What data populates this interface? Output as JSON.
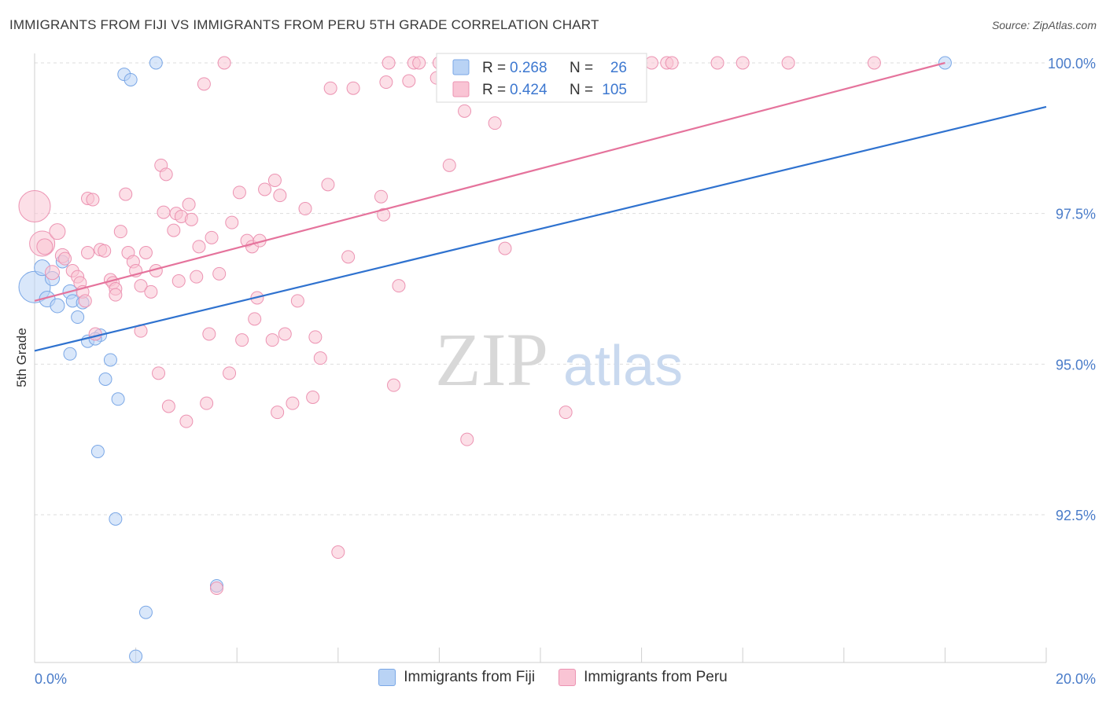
{
  "header": {
    "title": "IMMIGRANTS FROM FIJI VS IMMIGRANTS FROM PERU 5TH GRADE CORRELATION CHART",
    "source": "Source: ZipAtlas.com"
  },
  "watermark": {
    "zip": "ZIP",
    "atlas": "atlas"
  },
  "colors": {
    "fiji_fill": "#b9d3f5",
    "fiji_stroke": "#7aa7e6",
    "fiji_line": "#2f72cf",
    "peru_fill": "#f9c4d4",
    "peru_stroke": "#ec93b2",
    "peru_line": "#e5739c",
    "tick_label": "#4a7cc9",
    "grid": "#dddddd"
  },
  "legend_box": {
    "rows": [
      {
        "r_label": "R =",
        "r_value": "0.268",
        "n_label": "N =",
        "n_value": "26",
        "series": "fiji"
      },
      {
        "r_label": "R =",
        "r_value": "0.424",
        "n_label": "N =",
        "n_value": "105",
        "series": "peru"
      }
    ]
  },
  "chart_data": {
    "type": "scatter",
    "title": "IMMIGRANTS FROM FIJI VS IMMIGRANTS FROM PERU 5TH GRADE CORRELATION CHART",
    "xlabel": "",
    "ylabel": "5th Grade",
    "xlim": [
      0,
      20
    ],
    "ylim": [
      90.0,
      100.4
    ],
    "x_tick_labels": [
      {
        "value": 0,
        "label": "0.0%"
      },
      {
        "value": 20,
        "label": "20.0%"
      }
    ],
    "y_ticks": [
      {
        "value": 100,
        "label": "100.0%"
      },
      {
        "value": 97.5,
        "label": "97.5%"
      },
      {
        "value": 95,
        "label": "95.0%"
      },
      {
        "value": 92.5,
        "label": "92.5%"
      }
    ],
    "x_minor_ticks": [
      2,
      4,
      6,
      8,
      10,
      12,
      14,
      16,
      18,
      20
    ],
    "grid": true,
    "legend": "top-center and bottom",
    "series": [
      {
        "name": "Immigrants from Fiji",
        "key": "fiji",
        "trend": {
          "x": [
            0,
            20
          ],
          "y": [
            95.22,
            99.27
          ]
        },
        "points": [
          [
            0.0,
            96.28,
            20
          ],
          [
            0.15,
            96.6,
            10
          ],
          [
            0.25,
            96.08,
            10
          ],
          [
            0.35,
            96.42,
            9
          ],
          [
            0.45,
            95.97,
            9
          ],
          [
            0.55,
            96.7,
            8
          ],
          [
            0.7,
            96.2,
            9
          ],
          [
            0.75,
            96.05,
            8
          ],
          [
            0.85,
            95.78,
            8
          ],
          [
            0.95,
            96.02,
            8
          ],
          [
            0.7,
            95.17,
            8
          ],
          [
            1.05,
            95.38,
            8
          ],
          [
            1.3,
            95.48,
            8
          ],
          [
            1.2,
            95.42,
            8
          ],
          [
            1.5,
            95.07,
            8
          ],
          [
            1.4,
            94.75,
            8
          ],
          [
            1.65,
            94.42,
            8
          ],
          [
            1.25,
            93.55,
            8
          ],
          [
            1.6,
            92.43,
            8
          ],
          [
            1.77,
            99.81,
            8
          ],
          [
            1.9,
            99.72,
            8
          ],
          [
            2.4,
            100.0,
            8
          ],
          [
            3.6,
            91.32,
            8
          ],
          [
            2.2,
            90.88,
            8
          ],
          [
            2.0,
            90.15,
            8
          ],
          [
            18.0,
            100.0,
            8
          ]
        ]
      },
      {
        "name": "Immigrants from Peru",
        "key": "peru",
        "trend": {
          "x": [
            0,
            18
          ],
          "y": [
            96.05,
            100.0
          ]
        },
        "points": [
          [
            0.0,
            97.62,
            20
          ],
          [
            0.15,
            97.0,
            16
          ],
          [
            0.2,
            96.95,
            10
          ],
          [
            0.45,
            97.2,
            10
          ],
          [
            0.35,
            96.52,
            9
          ],
          [
            0.55,
            96.8,
            9
          ],
          [
            0.6,
            96.75,
            8
          ],
          [
            0.75,
            96.55,
            8
          ],
          [
            0.85,
            96.45,
            8
          ],
          [
            0.9,
            96.35,
            8
          ],
          [
            0.95,
            96.2,
            8
          ],
          [
            1.0,
            96.05,
            8
          ],
          [
            1.05,
            97.75,
            8
          ],
          [
            1.15,
            97.73,
            8
          ],
          [
            1.05,
            96.85,
            8
          ],
          [
            1.3,
            96.9,
            8
          ],
          [
            1.38,
            96.88,
            8
          ],
          [
            1.5,
            96.4,
            8
          ],
          [
            1.55,
            96.35,
            8
          ],
          [
            1.6,
            96.25,
            8
          ],
          [
            1.6,
            96.15,
            8
          ],
          [
            1.7,
            97.2,
            8
          ],
          [
            1.8,
            97.82,
            8
          ],
          [
            1.85,
            96.85,
            8
          ],
          [
            1.95,
            96.7,
            8
          ],
          [
            2.0,
            96.55,
            8
          ],
          [
            2.1,
            96.3,
            8
          ],
          [
            2.1,
            95.55,
            8
          ],
          [
            2.2,
            96.85,
            8
          ],
          [
            2.3,
            96.2,
            8
          ],
          [
            2.4,
            96.55,
            8
          ],
          [
            2.45,
            94.85,
            8
          ],
          [
            2.5,
            98.3,
            8
          ],
          [
            2.55,
            97.52,
            8
          ],
          [
            2.6,
            98.15,
            8
          ],
          [
            2.65,
            94.3,
            8
          ],
          [
            2.75,
            97.22,
            8
          ],
          [
            2.8,
            97.5,
            8
          ],
          [
            2.85,
            96.38,
            8
          ],
          [
            2.9,
            97.45,
            8
          ],
          [
            3.0,
            94.05,
            8
          ],
          [
            3.05,
            97.65,
            8
          ],
          [
            3.1,
            97.4,
            8
          ],
          [
            3.2,
            96.45,
            8
          ],
          [
            3.25,
            96.95,
            8
          ],
          [
            3.35,
            99.65,
            8
          ],
          [
            3.4,
            94.35,
            8
          ],
          [
            3.45,
            95.5,
            8
          ],
          [
            3.5,
            97.1,
            8
          ],
          [
            3.6,
            91.28,
            8
          ],
          [
            3.65,
            96.5,
            8
          ],
          [
            3.75,
            100.0,
            8
          ],
          [
            3.85,
            94.85,
            8
          ],
          [
            3.9,
            97.35,
            8
          ],
          [
            4.05,
            97.85,
            8
          ],
          [
            4.1,
            95.4,
            8
          ],
          [
            4.2,
            97.05,
            8
          ],
          [
            4.3,
            96.95,
            8
          ],
          [
            4.35,
            95.75,
            8
          ],
          [
            4.4,
            96.1,
            8
          ],
          [
            4.45,
            97.05,
            8
          ],
          [
            4.55,
            97.9,
            8
          ],
          [
            4.7,
            95.4,
            8
          ],
          [
            4.75,
            98.05,
            8
          ],
          [
            4.8,
            94.2,
            8
          ],
          [
            4.85,
            97.8,
            8
          ],
          [
            4.95,
            95.5,
            8
          ],
          [
            5.1,
            94.35,
            8
          ],
          [
            5.2,
            96.05,
            8
          ],
          [
            5.35,
            97.58,
            8
          ],
          [
            5.5,
            94.45,
            8
          ],
          [
            5.55,
            95.45,
            8
          ],
          [
            5.65,
            95.1,
            8
          ],
          [
            5.8,
            97.98,
            8
          ],
          [
            5.85,
            99.58,
            8
          ],
          [
            6.0,
            91.88,
            8
          ],
          [
            6.2,
            96.78,
            8
          ],
          [
            6.3,
            99.58,
            8
          ],
          [
            6.85,
            97.78,
            8
          ],
          [
            6.9,
            97.48,
            8
          ],
          [
            6.95,
            99.68,
            8
          ],
          [
            7.0,
            100.0,
            8
          ],
          [
            7.1,
            94.65,
            8
          ],
          [
            7.2,
            96.3,
            8
          ],
          [
            7.4,
            99.7,
            8
          ],
          [
            7.5,
            100.0,
            8
          ],
          [
            7.6,
            100.0,
            8
          ],
          [
            7.95,
            99.75,
            8
          ],
          [
            8.0,
            100.0,
            8
          ],
          [
            8.2,
            98.3,
            8
          ],
          [
            8.5,
            99.2,
            8
          ],
          [
            8.55,
            93.75,
            8
          ],
          [
            8.8,
            100.0,
            8
          ],
          [
            9.1,
            99.0,
            8
          ],
          [
            9.3,
            96.92,
            8
          ],
          [
            10.5,
            94.2,
            8
          ],
          [
            12.2,
            100.0,
            8
          ],
          [
            12.5,
            100.0,
            8
          ],
          [
            12.6,
            100.0,
            8
          ],
          [
            13.5,
            100.0,
            8
          ],
          [
            14.0,
            100.0,
            8
          ],
          [
            14.9,
            100.0,
            8
          ],
          [
            16.6,
            100.0,
            8
          ],
          [
            10.0,
            100.0,
            8
          ],
          [
            1.2,
            95.5,
            8
          ]
        ]
      }
    ]
  },
  "bottom_legend": [
    {
      "label": "Immigrants from Fiji",
      "series": "fiji"
    },
    {
      "label": "Immigrants from Peru",
      "series": "peru"
    }
  ]
}
